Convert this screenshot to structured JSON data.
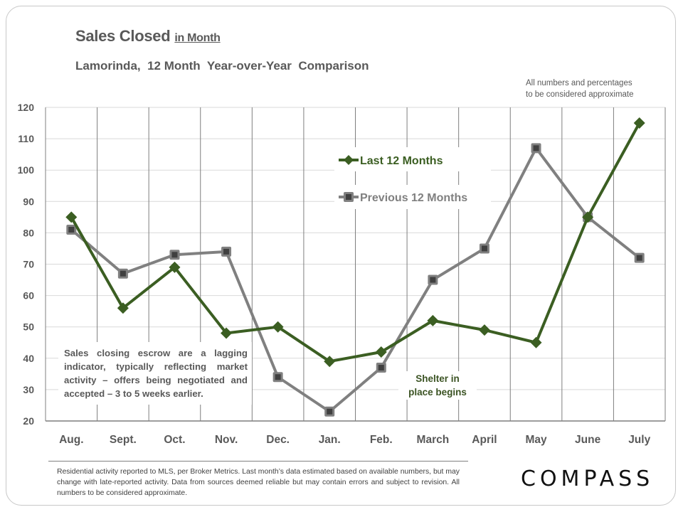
{
  "header": {
    "title": "Sales Closed",
    "title_suffix": "in Month",
    "subtitle": "Lamorinda,  12 Month  Year-over-Year  Comparison",
    "approx_note_line1": "All numbers and percentages",
    "approx_note_line2": "to be considered approximate"
  },
  "annotations": {
    "lagging_note": "Sales closing escrow are a lagging indicator, typically reflecting market activity – offers being negotiated and accepted – 3 to 5 weeks earlier.",
    "shelter_line1": "Shelter in",
    "shelter_line2": "place  begins"
  },
  "footer": {
    "disclaimer": "Residential activity reported to MLS, per Broker Metrics. Last month’s data estimated based on available numbers, but may change with late-reported activity. Data from sources deemed reliable but may contain errors and subject to revision. All numbers to be considered approximate.",
    "logo_text": "COMPASS"
  },
  "colors": {
    "last_12": "#3b5e22",
    "previous_12": "#808080",
    "previous_marker_fill": "#404040",
    "grid": "#d9d9d9",
    "vertical_grid": "#7f7f7f",
    "axis_text": "#595959"
  },
  "chart_data": {
    "type": "line",
    "title": "Sales Closed in Month",
    "subtitle": "Lamorinda, 12 Month Year-over-Year Comparison",
    "xlabel": "",
    "ylabel": "",
    "categories": [
      "Aug.",
      "Sept.",
      "Oct.",
      "Nov.",
      "Dec.",
      "Jan.",
      "Feb.",
      "March",
      "April",
      "May",
      "June",
      "July"
    ],
    "ylim": [
      20,
      120
    ],
    "yticks": [
      20,
      30,
      40,
      50,
      60,
      70,
      80,
      90,
      100,
      110,
      120
    ],
    "grid": true,
    "legend_position": "top-center",
    "series": [
      {
        "name": "Last 12 Months",
        "marker": "diamond",
        "color": "#3b5e22",
        "values": [
          85,
          56,
          69,
          48,
          50,
          39,
          42,
          52,
          49,
          45,
          85,
          115
        ]
      },
      {
        "name": "Previous 12 Months",
        "marker": "square",
        "color": "#808080",
        "values": [
          81,
          67,
          73,
          74,
          34,
          23,
          37,
          65,
          75,
          107,
          85,
          72
        ]
      }
    ]
  }
}
